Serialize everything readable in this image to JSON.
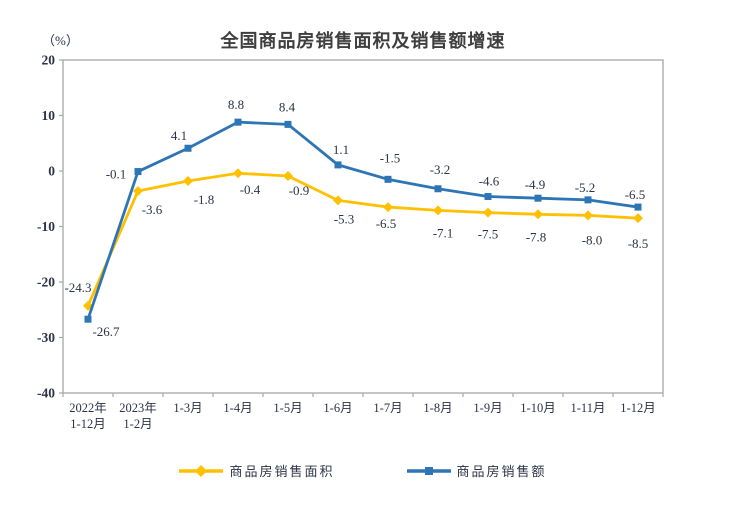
{
  "header": {
    "unit_label": "（%）",
    "title": "全国商品房销售面积及销售额增速"
  },
  "chart_data": {
    "type": "line",
    "title": "全国商品房销售面积及销售额增速",
    "unit": "%",
    "ylim": [
      -40,
      20
    ],
    "ytick_step": 10,
    "ytick_labels": [
      "20",
      "10",
      "0",
      "-10",
      "-20",
      "-30",
      "-40"
    ],
    "grid": false,
    "legend_position": "bottom",
    "categories": [
      [
        "2022年",
        "1-12月"
      ],
      [
        "2023年",
        "1-2月"
      ],
      "1-3月",
      "1-4月",
      "1-5月",
      "1-6月",
      "1-7月",
      "1-8月",
      "1-9月",
      "1-10月",
      "1-11月",
      "1-12月"
    ],
    "series": [
      {
        "id": "sales-area",
        "name": "商品房销售面积",
        "color": "#FFC000",
        "marker": "diamond",
        "values": [
          -24.3,
          -3.6,
          -1.8,
          -0.4,
          -0.9,
          -5.3,
          -6.5,
          -7.1,
          -7.5,
          -7.8,
          -8.0,
          -8.5
        ],
        "label_offsets": [
          [
            -10,
            -18
          ],
          [
            14,
            19
          ],
          [
            16,
            19
          ],
          [
            12,
            17
          ],
          [
            11,
            15
          ],
          [
            6,
            19
          ],
          [
            -2,
            17
          ],
          [
            5,
            23
          ],
          [
            0,
            22
          ],
          [
            -2,
            23
          ],
          [
            4,
            25
          ],
          [
            0,
            26
          ]
        ]
      },
      {
        "id": "sales-amount",
        "name": "商品房销售额",
        "color": "#2E75B6",
        "marker": "square",
        "values": [
          -26.7,
          -0.1,
          4.1,
          8.8,
          8.4,
          1.1,
          -1.5,
          -3.2,
          -4.6,
          -4.9,
          -5.2,
          -6.5
        ],
        "label_offsets": [
          [
            18,
            13
          ],
          [
            -22,
            3
          ],
          [
            -9,
            -12
          ],
          [
            -2,
            -17
          ],
          [
            -1,
            -17
          ],
          [
            3,
            -15
          ],
          [
            2,
            -21
          ],
          [
            2,
            -19
          ],
          [
            1,
            -15
          ],
          [
            -3,
            -13
          ],
          [
            -3,
            -12
          ],
          [
            -3,
            -12
          ]
        ]
      }
    ]
  },
  "style": {
    "axis_color": "#A6A6A6",
    "text_color": "#2c3345",
    "title_color": "#3f3f3f",
    "background": "#ffffff"
  }
}
